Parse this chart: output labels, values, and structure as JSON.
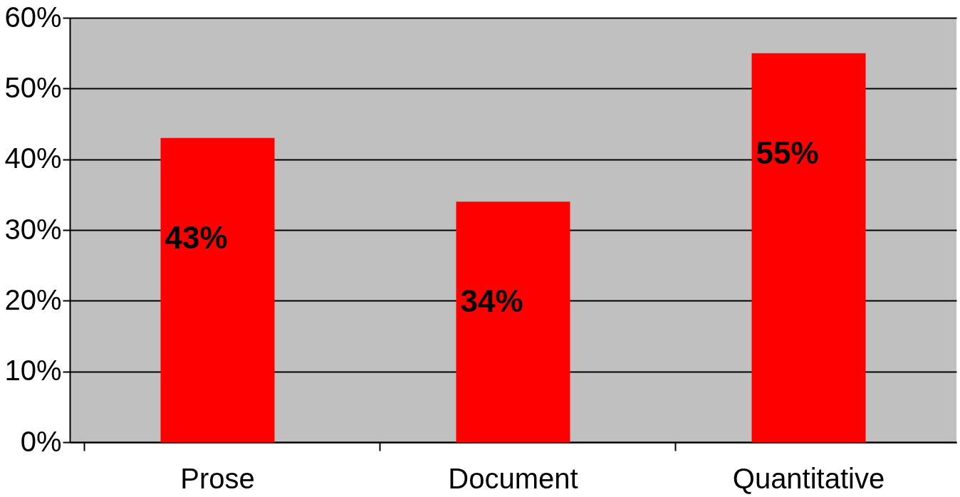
{
  "chart_data": {
    "type": "bar",
    "categories": [
      "Prose",
      "Document",
      "Quantitative"
    ],
    "values": [
      43,
      34,
      55
    ],
    "value_labels": [
      "43%",
      "34%",
      "55%"
    ],
    "color": "#ff0000",
    "ylim": [
      0,
      60
    ],
    "yticks": [
      {
        "value": 0,
        "label": "0%"
      },
      {
        "value": 10,
        "label": "10%"
      },
      {
        "value": 20,
        "label": "20%"
      },
      {
        "value": 30,
        "label": "30%"
      },
      {
        "value": 40,
        "label": "40%"
      },
      {
        "value": 50,
        "label": "50%"
      },
      {
        "value": 60,
        "label": "60%"
      }
    ],
    "grid": "y"
  }
}
